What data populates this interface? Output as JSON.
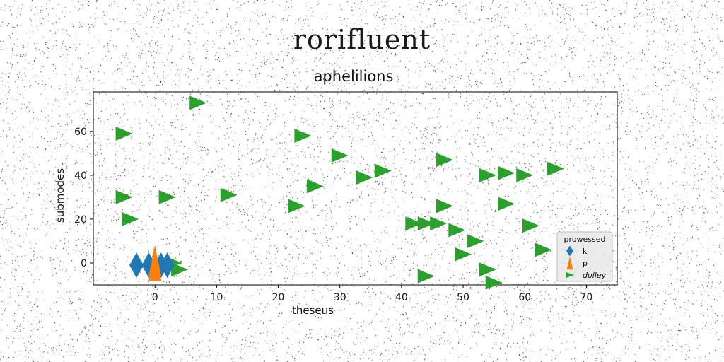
{
  "figure": {
    "suptitle": "rorifluent"
  },
  "chart_data": {
    "type": "scatter",
    "title": "aphelilions",
    "xlabel": "theseus",
    "ylabel": "submodes",
    "xlim": [
      -10,
      75
    ],
    "ylim": [
      -10,
      78
    ],
    "xticks": [
      0,
      10,
      20,
      30,
      40,
      50,
      60,
      70
    ],
    "yticks": [
      0,
      20,
      40,
      60
    ],
    "grid": false,
    "legend": {
      "title": "prowessed",
      "placement": "lower-right"
    },
    "series": [
      {
        "name": "k",
        "marker": "diamond",
        "color": "#1f77b4",
        "points": [
          [
            -3,
            -1
          ],
          [
            -1,
            -1
          ],
          [
            1,
            -1
          ],
          [
            2,
            -1
          ]
        ]
      },
      {
        "name": "p",
        "marker": "triangle-up",
        "color": "#ff7f0e",
        "points": [
          [
            0,
            1
          ],
          [
            0,
            -1
          ]
        ]
      },
      {
        "name": "dolley",
        "marker": "triangle-right",
        "color": "#2ca02c",
        "points": [
          [
            7,
            73
          ],
          [
            -5,
            59
          ],
          [
            24,
            58
          ],
          [
            30,
            49
          ],
          [
            47,
            47
          ],
          [
            37,
            42
          ],
          [
            34,
            39
          ],
          [
            54,
            40
          ],
          [
            57,
            41
          ],
          [
            60,
            40
          ],
          [
            65,
            43
          ],
          [
            26,
            35
          ],
          [
            -5,
            30
          ],
          [
            2,
            30
          ],
          [
            12,
            31
          ],
          [
            23,
            26
          ],
          [
            47,
            26
          ],
          [
            57,
            27
          ],
          [
            -4,
            20
          ],
          [
            42,
            18
          ],
          [
            44,
            18
          ],
          [
            46,
            18
          ],
          [
            49,
            15
          ],
          [
            61,
            17
          ],
          [
            52,
            10
          ],
          [
            63,
            6
          ],
          [
            50,
            4
          ],
          [
            54,
            -3
          ],
          [
            44,
            -6
          ],
          [
            55,
            -9
          ],
          [
            3,
            0
          ],
          [
            4,
            -3
          ]
        ]
      }
    ]
  }
}
